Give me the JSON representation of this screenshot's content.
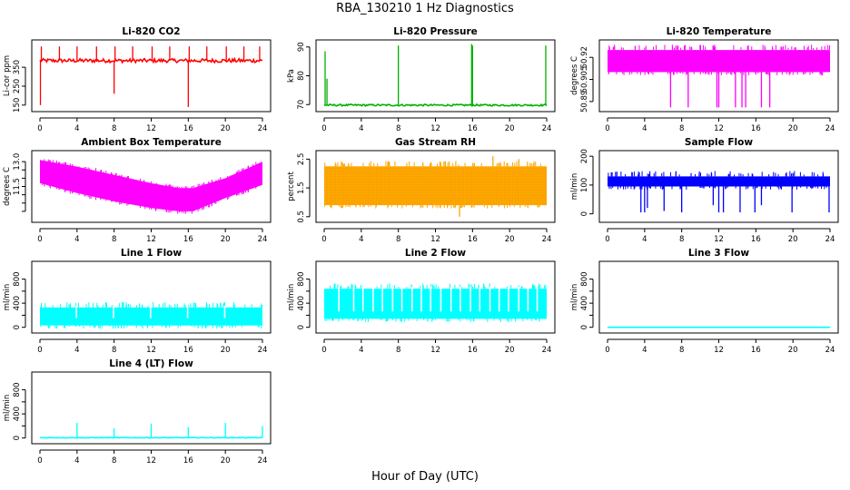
{
  "figure": {
    "title": "RBA_130210  1 Hz Diagnostics",
    "xlabel": "Hour of Day (UTC)"
  },
  "colors": {
    "red": "#ff0000",
    "green": "#00b000",
    "magenta": "#ff00ff",
    "orange": "#ffa500",
    "blue": "#0000ff",
    "cyan": "#00ffff"
  },
  "chart_data": [
    {
      "type": "line",
      "title": "Li-820 CO2",
      "ylabel": "Li-cor ppm",
      "color": "red",
      "xlim": [
        0,
        24
      ],
      "ylim": [
        130,
        480
      ],
      "xticks": [
        0,
        4,
        8,
        12,
        16,
        20,
        24
      ],
      "yticks": [
        150,
        250,
        350
      ],
      "ytick_labels": [
        "150",
        "250",
        "350"
      ],
      "baseline": 385,
      "noise": 10,
      "spikes": [
        {
          "x": 0.05,
          "to": 150
        },
        {
          "x": 0.15,
          "to": 460
        },
        {
          "x": 2.1,
          "to": 460
        },
        {
          "x": 4.0,
          "to": 460
        },
        {
          "x": 6.1,
          "to": 460
        },
        {
          "x": 8.0,
          "to": 210
        },
        {
          "x": 8.1,
          "to": 460
        },
        {
          "x": 10.0,
          "to": 460
        },
        {
          "x": 12.1,
          "to": 460
        },
        {
          "x": 14.0,
          "to": 460
        },
        {
          "x": 16.0,
          "to": 140
        },
        {
          "x": 16.1,
          "to": 460
        },
        {
          "x": 18.0,
          "to": 460
        },
        {
          "x": 20.1,
          "to": 460
        },
        {
          "x": 22.0,
          "to": 460
        },
        {
          "x": 23.7,
          "to": 460
        }
      ]
    },
    {
      "type": "line",
      "title": "Li-820 Pressure",
      "ylabel": "kPa",
      "color": "green",
      "xlim": [
        0,
        24
      ],
      "ylim": [
        68.5,
        91.5
      ],
      "xticks": [
        0,
        4,
        8,
        12,
        16,
        20,
        24
      ],
      "yticks": [
        70,
        80,
        90
      ],
      "ytick_labels": [
        "70",
        "80",
        "90"
      ],
      "baseline": 69.8,
      "noise": 0.3,
      "spikes": [
        {
          "x": 0.1,
          "to": 88.5
        },
        {
          "x": 0.3,
          "to": 79
        },
        {
          "x": 8.0,
          "to": 90.5
        },
        {
          "x": 15.9,
          "to": 91
        },
        {
          "x": 16.0,
          "to": 90.5
        },
        {
          "x": 23.9,
          "to": 90.5
        }
      ]
    },
    {
      "type": "band",
      "title": "Li-820 Temperature",
      "ylabel": "degrees C",
      "color": "magenta",
      "xlim": [
        0,
        24
      ],
      "ylim": [
        50.885,
        50.93
      ],
      "xticks": [
        0,
        4,
        8,
        12,
        16,
        20,
        24
      ],
      "yticks": [
        50.89,
        50.905,
        50.92
      ],
      "ytick_labels": [
        "50.89",
        "50.905",
        "50.92"
      ],
      "band": [
        50.91,
        50.925
      ],
      "dips": [
        {
          "x": 6.8,
          "to": 50.886
        },
        {
          "x": 8.7,
          "to": 50.886
        },
        {
          "x": 11.8,
          "to": 50.886
        },
        {
          "x": 12.0,
          "to": 50.886
        },
        {
          "x": 13.8,
          "to": 50.886
        },
        {
          "x": 14.5,
          "to": 50.886
        },
        {
          "x": 14.9,
          "to": 50.886
        },
        {
          "x": 16.6,
          "to": 50.886
        },
        {
          "x": 17.5,
          "to": 50.886
        }
      ]
    },
    {
      "type": "envelope",
      "title": "Ambient Box Temperature",
      "ylabel": "degrees C",
      "color": "magenta",
      "xlim": [
        0,
        24
      ],
      "ylim": [
        9.5,
        13.5
      ],
      "xticks": [
        0,
        4,
        8,
        12,
        16,
        20,
        24
      ],
      "yticks": [
        10.0,
        10.5,
        11.0,
        11.5,
        12.0,
        12.5,
        13.0
      ],
      "ytick_labels": [
        "",
        "",
        "",
        "11.5",
        "",
        "",
        "13.0"
      ],
      "upper": [
        [
          0,
          13.1
        ],
        [
          4,
          12.7
        ],
        [
          8,
          12.2
        ],
        [
          12,
          11.7
        ],
        [
          15,
          11.4
        ],
        [
          16.5,
          11.4
        ],
        [
          20,
          12.0
        ],
        [
          24,
          13.0
        ]
      ],
      "lower": [
        [
          0,
          11.7
        ],
        [
          4,
          11.1
        ],
        [
          8,
          10.6
        ],
        [
          12,
          10.2
        ],
        [
          15,
          10.0
        ],
        [
          16.5,
          10.0
        ],
        [
          20,
          10.8
        ],
        [
          24,
          11.6
        ]
      ]
    },
    {
      "type": "band",
      "title": "Gas Stream RH",
      "ylabel": "percent",
      "color": "orange",
      "xlim": [
        0,
        24
      ],
      "ylim": [
        0.4,
        2.7
      ],
      "xticks": [
        0,
        4,
        8,
        12,
        16,
        20,
        24
      ],
      "yticks": [
        0.5,
        1.5,
        2.5
      ],
      "ytick_labels": [
        "0.5",
        "1.5",
        "2.5"
      ],
      "band": [
        0.9,
        2.25
      ],
      "dips": [
        {
          "x": 14.6,
          "to": 0.5
        }
      ],
      "peaks": [
        {
          "x": 18.2,
          "to": 2.6
        },
        {
          "x": 21.0,
          "to": 2.5
        }
      ]
    },
    {
      "type": "band",
      "title": "Sample Flow",
      "ylabel": "ml/min",
      "color": "blue",
      "xlim": [
        0,
        24
      ],
      "ylim": [
        -20,
        210
      ],
      "xticks": [
        0,
        4,
        8,
        12,
        16,
        20,
        24
      ],
      "yticks": [
        0,
        100,
        200
      ],
      "ytick_labels": [
        "0",
        "100",
        "200"
      ],
      "band": [
        95,
        130
      ],
      "dips": [
        {
          "x": 3.6,
          "to": 5
        },
        {
          "x": 4.0,
          "to": 5
        },
        {
          "x": 4.3,
          "to": 20
        },
        {
          "x": 6.1,
          "to": 10
        },
        {
          "x": 8.0,
          "to": 5
        },
        {
          "x": 11.4,
          "to": 30
        },
        {
          "x": 12.0,
          "to": 5
        },
        {
          "x": 12.5,
          "to": 5
        },
        {
          "x": 14.3,
          "to": 5
        },
        {
          "x": 15.9,
          "to": 5
        },
        {
          "x": 16.6,
          "to": 30
        },
        {
          "x": 19.9,
          "to": 5
        },
        {
          "x": 23.9,
          "to": 5
        }
      ]
    },
    {
      "type": "band",
      "title": "Line 1 Flow",
      "ylabel": "ml/min",
      "color": "cyan",
      "xlim": [
        0,
        24
      ],
      "ylim": [
        -50,
        1050
      ],
      "xticks": [
        0,
        4,
        8,
        12,
        16,
        20,
        24
      ],
      "yticks": [
        0,
        200,
        400,
        600,
        800
      ],
      "ytick_labels": [
        "0",
        "",
        "400",
        "",
        "800"
      ],
      "band": [
        30,
        330
      ],
      "gaps": [
        3.95,
        7.95,
        11.95,
        15.95,
        19.95
      ]
    },
    {
      "type": "band",
      "title": "Line 2 Flow",
      "ylabel": "ml/min",
      "color": "cyan",
      "xlim": [
        0,
        24
      ],
      "ylim": [
        -50,
        1050
      ],
      "xticks": [
        0,
        4,
        8,
        12,
        16,
        20,
        24
      ],
      "yticks": [
        0,
        200,
        400,
        600,
        800
      ],
      "ytick_labels": [
        "0",
        "",
        "400",
        "",
        "800"
      ],
      "band": [
        140,
        640
      ],
      "gaps": [
        1.6,
        3.2,
        4.2,
        5.3,
        6.3,
        7.4,
        8.4,
        9.5,
        10.5,
        11.5,
        12.6,
        13.7,
        14.7,
        15.8,
        16.8,
        17.9,
        18.9,
        19.9,
        21.0,
        22.0,
        23.0
      ]
    },
    {
      "type": "line",
      "title": "Line 3 Flow",
      "ylabel": "ml/min",
      "color": "cyan",
      "xlim": [
        0,
        24
      ],
      "ylim": [
        -50,
        1050
      ],
      "xticks": [
        0,
        4,
        8,
        12,
        16,
        20,
        24
      ],
      "yticks": [
        0,
        200,
        400,
        600,
        800
      ],
      "ytick_labels": [
        "0",
        "",
        "400",
        "",
        "800"
      ],
      "baseline": 0,
      "noise": 0,
      "spikes": []
    },
    {
      "type": "line",
      "title": "Line 4 (LT) Flow",
      "ylabel": "ml/min",
      "color": "cyan",
      "xlim": [
        0,
        24
      ],
      "ylim": [
        -50,
        1050
      ],
      "xticks": [
        0,
        4,
        8,
        12,
        16,
        20,
        24
      ],
      "yticks": [
        0,
        200,
        400,
        600,
        800
      ],
      "ytick_labels": [
        "0",
        "",
        "400",
        "",
        "800"
      ],
      "baseline": 5,
      "noise": 5,
      "spikes": [
        {
          "x": 4.0,
          "to": 250
        },
        {
          "x": 8.0,
          "to": 160
        },
        {
          "x": 12.0,
          "to": 240
        },
        {
          "x": 16.0,
          "to": 180
        },
        {
          "x": 20.0,
          "to": 250
        },
        {
          "x": 24.0,
          "to": 200
        }
      ]
    }
  ]
}
